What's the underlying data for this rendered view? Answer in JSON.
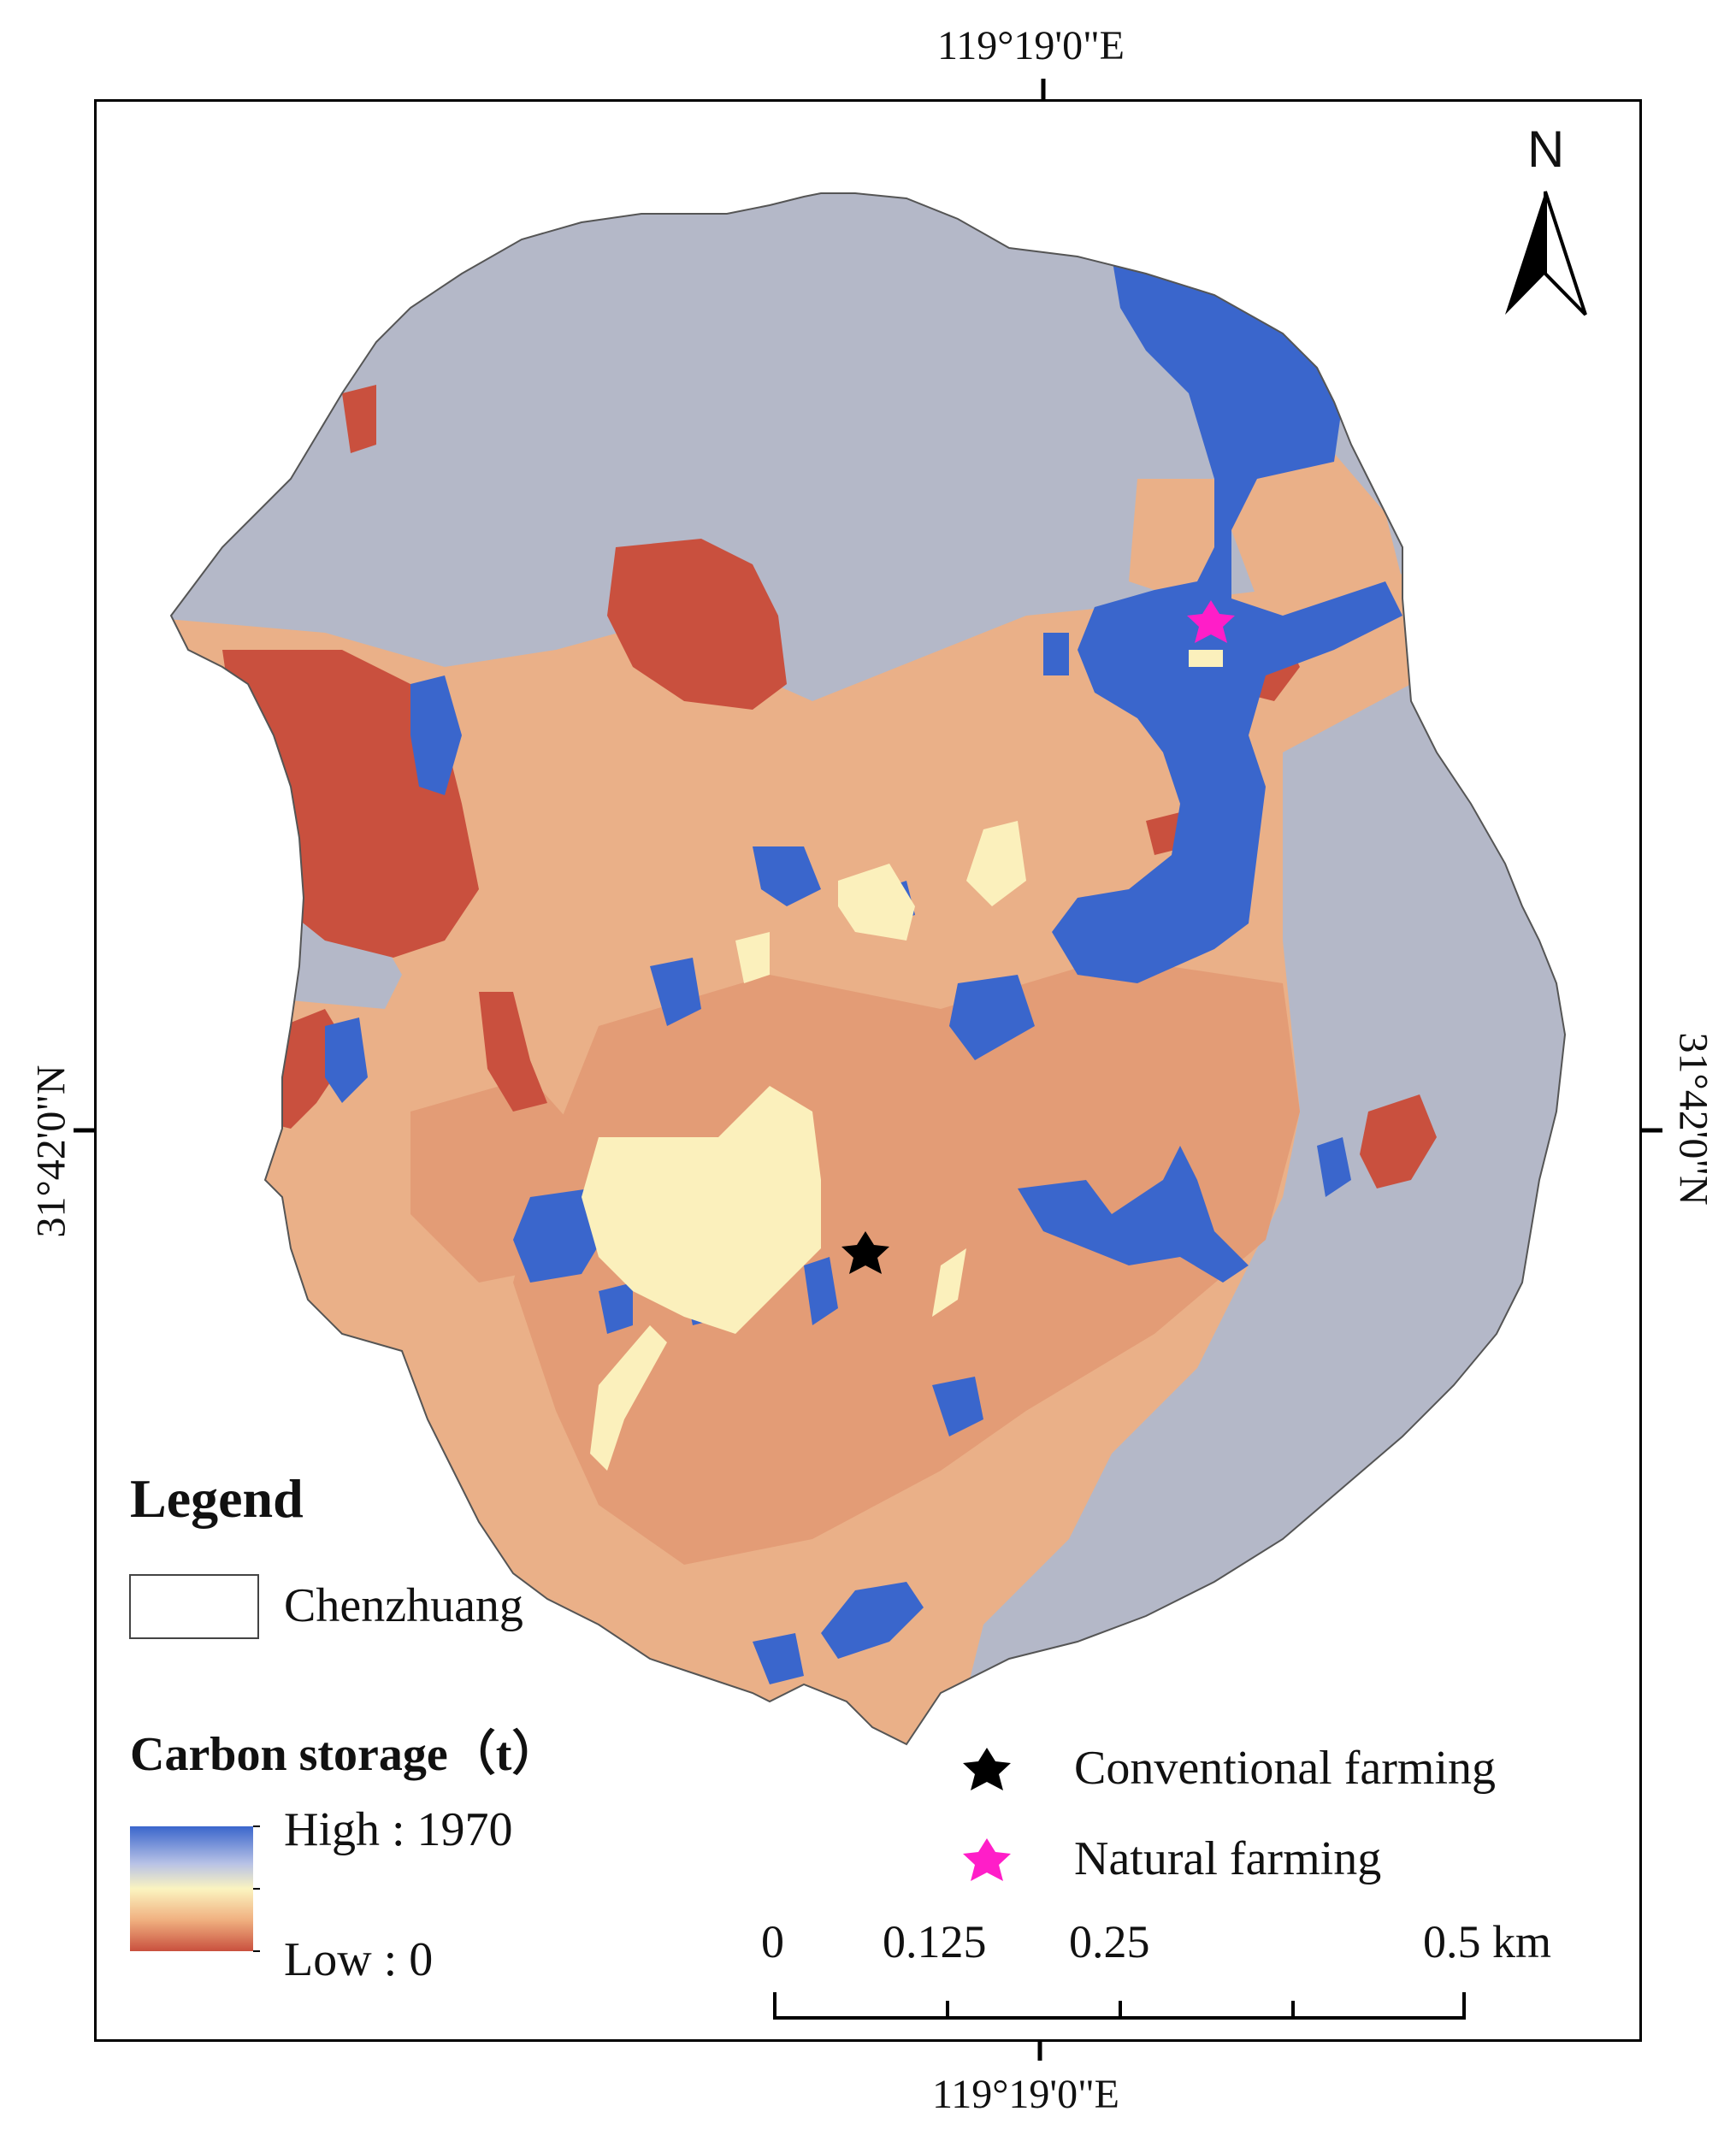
{
  "map": {
    "top_lon_label": "119°19'0\"E",
    "bottom_lon_label": "119°19'0\"E",
    "left_lat_label": "31°42'0\"N",
    "right_lat_label": "31°42'0\"N",
    "north_label": "N"
  },
  "legend": {
    "title": "Legend",
    "boundary_label": "Chenzhuang",
    "carbon_title": "Carbon storage（t）",
    "high_label": "High : 1970",
    "low_label": "Low : 0",
    "gradient_colors": [
      "#3a66cc",
      "#b8c2e6",
      "#fbf4c0",
      "#f0b080",
      "#c9503e"
    ]
  },
  "sites": {
    "conventional_label": "Conventional farming",
    "natural_label": "Natural farming",
    "conventional_color": "#000000",
    "natural_color": "#ff1ec8"
  },
  "scale_bar": {
    "labels": [
      "0",
      "0.125",
      "0.25",
      "0.5 km"
    ]
  },
  "colors": {
    "gray_zone": "#b4b8c8",
    "blue_zone": "#3a66cc",
    "light_orange": "#eab088",
    "mid_orange": "#e39c76",
    "red_zone": "#c9503e",
    "yellow_zone": "#fbf0bc"
  }
}
